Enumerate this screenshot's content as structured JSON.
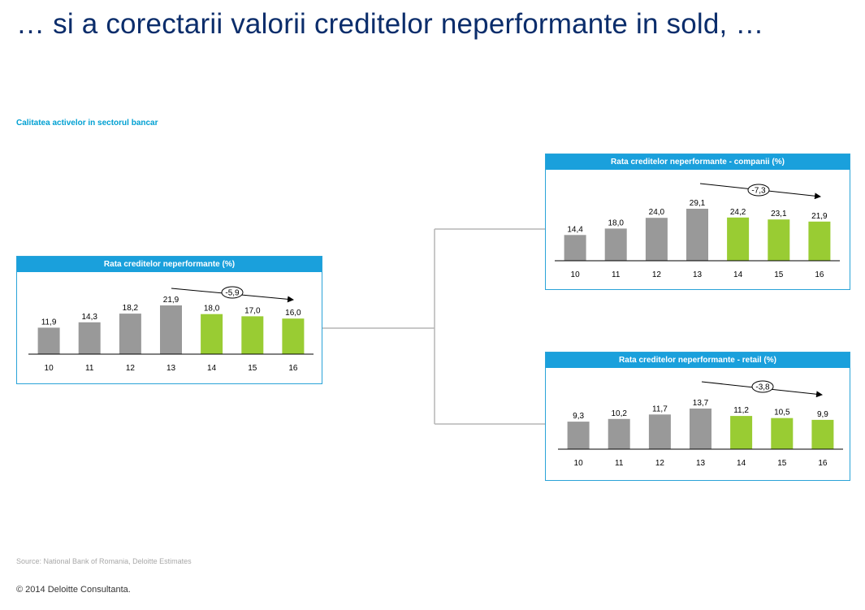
{
  "page": {
    "title": "… si a corectarii valorii creditelor neperformante in sold, …",
    "subtitle": "Calitatea activelor in sectorul bancar",
    "source": "Source: National Bank of Romania, Deloitte Estimates",
    "copyright": "© 2014 Deloitte Consultanta."
  },
  "colors": {
    "historic": "#999999",
    "estimate": "#99cc33",
    "header": "#1aa0dc",
    "title": "#0b2d6b"
  },
  "chart_data": [
    {
      "type": "bar",
      "title": "Rata creditelor neperformante (%)",
      "categories": [
        "10",
        "11",
        "12",
        "13",
        "14",
        "15",
        "16"
      ],
      "values": [
        11.9,
        14.3,
        18.2,
        21.9,
        18.0,
        17.0,
        16.0
      ],
      "labels": [
        "11,9",
        "14,3",
        "18,2",
        "21,9",
        "18,0",
        "17,0",
        "16,0"
      ],
      "estimate_from_index": 4,
      "annotation": "-5,9"
    },
    {
      "type": "bar",
      "title": "Rata creditelor neperformante - companii (%)",
      "categories": [
        "10",
        "11",
        "12",
        "13",
        "14",
        "15",
        "16"
      ],
      "values": [
        14.4,
        18.0,
        24.0,
        29.1,
        24.2,
        23.1,
        21.9
      ],
      "labels": [
        "14,4",
        "18,0",
        "24,0",
        "29,1",
        "24,2",
        "23,1",
        "21,9"
      ],
      "estimate_from_index": 4,
      "annotation": "-7,3"
    },
    {
      "type": "bar",
      "title": "Rata creditelor neperformante - retail (%)",
      "categories": [
        "10",
        "11",
        "12",
        "13",
        "14",
        "15",
        "16"
      ],
      "values": [
        9.3,
        10.2,
        11.7,
        13.7,
        11.2,
        10.5,
        9.9
      ],
      "labels": [
        "9,3",
        "10,2",
        "11,7",
        "13,7",
        "11,2",
        "10,5",
        "9,9"
      ],
      "estimate_from_index": 4,
      "annotation": "-3,8"
    }
  ]
}
